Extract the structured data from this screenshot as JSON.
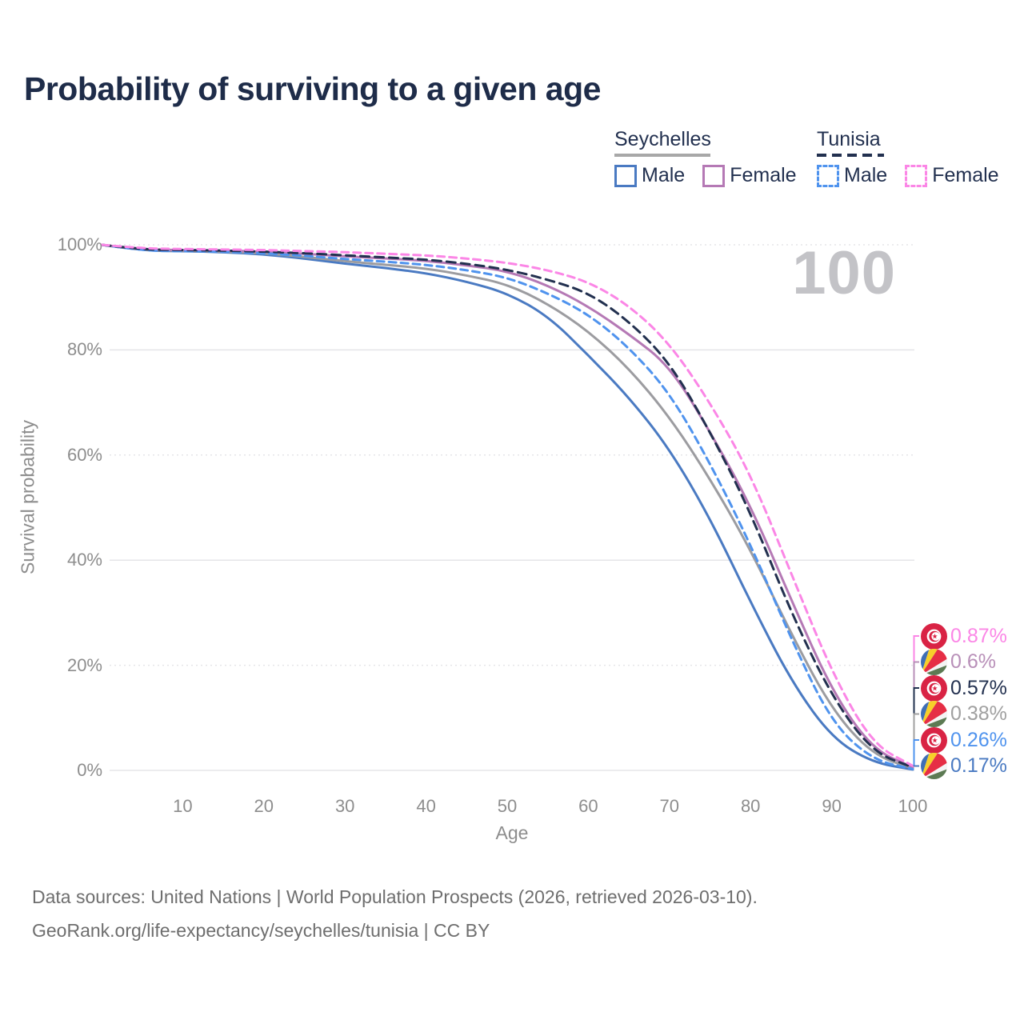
{
  "title": "Probability of surviving to a given age",
  "age_counter": "100",
  "colors": {
    "seychelles_male": "#4a7ac2",
    "seychelles_both": "#9c9ca0",
    "seychelles_female": "#b579b5",
    "tunisia_male": "#4f93ee",
    "tunisia_both": "#22304f",
    "tunisia_female": "#fb86e6",
    "grid": "#e5e5e8",
    "axis_text": "#8d8d8d",
    "title_text": "#1e2c49"
  },
  "legend": {
    "groups": [
      {
        "name": "Seychelles",
        "line_style": "solid",
        "line_color": "#a8a8a8",
        "items": [
          {
            "label": "Male",
            "color": "#4a7ac2",
            "dash": false
          },
          {
            "label": "Female",
            "color": "#b579b5",
            "dash": false
          }
        ]
      },
      {
        "name": "Tunisia",
        "line_style": "dashed",
        "line_color": "#22304f",
        "items": [
          {
            "label": "Male",
            "color": "#4f93ee",
            "dash": true
          },
          {
            "label": "Female",
            "color": "#fb86e6",
            "dash": true
          }
        ]
      }
    ]
  },
  "axes": {
    "x": {
      "label": "Age",
      "min": 0,
      "max": 100,
      "ticks": [
        10,
        20,
        30,
        40,
        50,
        60,
        70,
        80,
        90,
        100
      ]
    },
    "y": {
      "label": "Survival probability",
      "min": 0,
      "max": 100,
      "ticks": [
        {
          "v": 0,
          "label": "0%"
        },
        {
          "v": 20,
          "label": "20%"
        },
        {
          "v": 40,
          "label": "40%"
        },
        {
          "v": 60,
          "label": "60%"
        },
        {
          "v": 80,
          "label": "80%"
        },
        {
          "v": 100,
          "label": "100%"
        }
      ]
    }
  },
  "chart_data": {
    "type": "line",
    "title": "Probability of surviving to a given age",
    "xlabel": "Age",
    "ylabel": "Survival probability",
    "xlim": [
      0,
      100
    ],
    "ylim": [
      0,
      100
    ],
    "grid": "horizontal-only",
    "legend_position": "top-right",
    "x": [
      0,
      5,
      10,
      15,
      20,
      25,
      30,
      35,
      40,
      45,
      50,
      55,
      60,
      65,
      70,
      75,
      80,
      85,
      90,
      95,
      100
    ],
    "series": [
      {
        "name": "Seychelles Male",
        "key": "seychelles_male",
        "style": "solid",
        "color": "#4a7ac2",
        "values": [
          100,
          98.9,
          98.8,
          98.6,
          98.2,
          97.4,
          96.4,
          95.6,
          94.6,
          93.0,
          90.8,
          86.5,
          79.0,
          71.0,
          61.2,
          48.0,
          32.0,
          17.0,
          6.2,
          1.5,
          0.17
        ]
      },
      {
        "name": "Seychelles Both sexes",
        "key": "seychelles_both",
        "style": "solid",
        "color": "#9c9ca0",
        "values": [
          100,
          99.0,
          98.9,
          98.7,
          98.4,
          97.7,
          96.9,
          96.2,
          95.5,
          94.2,
          92.5,
          88.8,
          83.6,
          76.5,
          67.3,
          55.5,
          42.0,
          26.0,
          11.6,
          3.0,
          0.38
        ]
      },
      {
        "name": "Seychelles Female",
        "key": "seychelles_female",
        "style": "solid",
        "color": "#b579b5",
        "values": [
          100,
          99.1,
          99.0,
          98.9,
          98.7,
          98.3,
          97.8,
          97.4,
          97.0,
          96.1,
          95.0,
          92.3,
          88.3,
          83.0,
          77.0,
          64.5,
          50.4,
          32.5,
          15.2,
          4.0,
          0.6
        ]
      },
      {
        "name": "Tunisia Male",
        "key": "tunisia_male",
        "style": "dashed",
        "color": "#4f93ee",
        "values": [
          100,
          98.9,
          98.8,
          98.7,
          98.4,
          97.9,
          97.3,
          96.8,
          96.2,
          95.2,
          93.8,
          90.8,
          86.8,
          80.5,
          71.9,
          58.5,
          43.0,
          25.0,
          9.1,
          2.0,
          0.26
        ]
      },
      {
        "name": "Tunisia Both sexes",
        "key": "tunisia_both",
        "style": "dashed",
        "color": "#22304f",
        "values": [
          100,
          99.1,
          99.0,
          98.9,
          98.7,
          98.4,
          98.0,
          97.6,
          97.2,
          96.4,
          95.3,
          93.4,
          90.9,
          85.5,
          77.7,
          64.5,
          49.1,
          30.0,
          14.1,
          3.5,
          0.57
        ]
      },
      {
        "name": "Tunisia Female",
        "key": "tunisia_female",
        "style": "dashed",
        "color": "#fb86e6",
        "values": [
          100,
          99.3,
          99.2,
          99.1,
          99.0,
          98.8,
          98.6,
          98.3,
          98.0,
          97.4,
          96.6,
          95.2,
          93.0,
          88.5,
          81.3,
          70.0,
          56.4,
          37.5,
          18.7,
          5.0,
          0.87
        ]
      }
    ]
  },
  "end_labels": [
    {
      "value": "0.87%",
      "flag": "tunisia",
      "series": "Tunisia Female",
      "color": "#fb86e6"
    },
    {
      "value": "0.6%",
      "flag": "seychelles",
      "series": "Seychelles Female",
      "color": "#b88fb8"
    },
    {
      "value": "0.57%",
      "flag": "tunisia",
      "series": "Tunisia Both sexes",
      "color": "#22304f"
    },
    {
      "value": "0.38%",
      "flag": "seychelles",
      "series": "Seychelles Both sexes",
      "color": "#a0a0a0"
    },
    {
      "value": "0.26%",
      "flag": "tunisia",
      "series": "Tunisia Male",
      "color": "#4f93ee"
    },
    {
      "value": "0.17%",
      "flag": "seychelles",
      "series": "Seychelles Male",
      "color": "#4a7ac2"
    }
  ],
  "footer": {
    "line1": "Data sources: United Nations | World Population Prospects (2026, retrieved 2026-03-10).",
    "line2": "GeoRank.org/life-expectancy/seychelles/tunisia | CC BY"
  }
}
